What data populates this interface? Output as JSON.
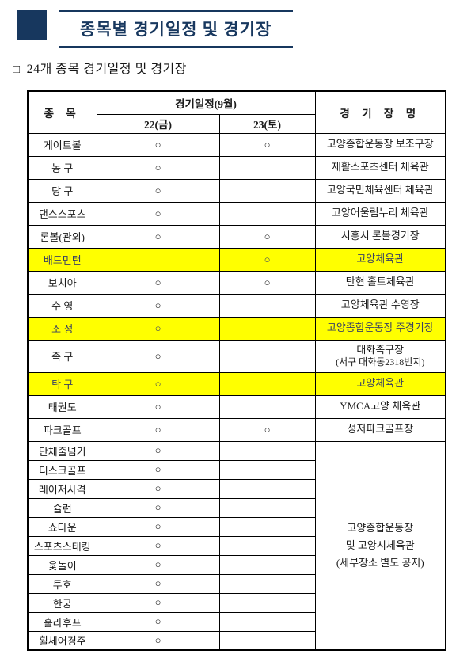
{
  "page": {
    "title": "종목별 경기일정 및 경기장",
    "subtitle_bullet": "□",
    "subtitle": "24개 종목 경기일정 및 경기장"
  },
  "colors": {
    "navy": "#17375e",
    "highlight": "#ffff00",
    "highlight_text": "#3a4263",
    "border": "#000000"
  },
  "table": {
    "headers": {
      "sport": "종 목",
      "schedule": "경기일정(9월)",
      "day1": "22(금)",
      "day2": "23(토)",
      "venue": "경 기 장 명"
    },
    "rows": [
      {
        "name": "게이트볼",
        "day1": "○",
        "day2": "○",
        "venue": [
          "고양종합운동장 보조구장"
        ],
        "highlight": false
      },
      {
        "name": "농 구",
        "day1": "○",
        "day2": "",
        "venue": [
          "재활스포츠센터 체육관"
        ],
        "highlight": false
      },
      {
        "name": "당 구",
        "day1": "○",
        "day2": "",
        "venue": [
          "고양국민체육센터 체육관"
        ],
        "highlight": false
      },
      {
        "name": "댄스스포츠",
        "day1": "○",
        "day2": "",
        "venue": [
          "고양어울림누리 체육관"
        ],
        "highlight": false
      },
      {
        "name": "론볼(관외)",
        "day1": "○",
        "day2": "○",
        "venue": [
          "시흥시 론볼경기장"
        ],
        "highlight": false
      },
      {
        "name": "배드민턴",
        "day1": "",
        "day2": "○",
        "venue": [
          "고양체육관"
        ],
        "highlight": true
      },
      {
        "name": "보치아",
        "day1": "○",
        "day2": "○",
        "venue": [
          "탄현 홀트체육관"
        ],
        "highlight": false
      },
      {
        "name": "수 영",
        "day1": "○",
        "day2": "",
        "venue": [
          "고양체육관 수영장"
        ],
        "highlight": false
      },
      {
        "name": "조 정",
        "day1": "○",
        "day2": "",
        "venue": [
          "고양종합운동장 주경기장"
        ],
        "highlight": true
      },
      {
        "name": "족 구",
        "day1": "○",
        "day2": "",
        "venue": [
          "대화족구장",
          "(서구 대화동2318번지)"
        ],
        "highlight": false
      },
      {
        "name": "탁 구",
        "day1": "○",
        "day2": "",
        "venue": [
          "고양체육관"
        ],
        "highlight": true
      },
      {
        "name": "태권도",
        "day1": "○",
        "day2": "",
        "venue": [
          "YMCA고양 체육관"
        ],
        "highlight": false
      },
      {
        "name": "파크골프",
        "day1": "○",
        "day2": "○",
        "venue": [
          "성저파크골프장"
        ],
        "highlight": false
      }
    ],
    "group_rows": [
      {
        "name": "단체줄넘기",
        "day1": "○",
        "day2": ""
      },
      {
        "name": "디스크골프",
        "day1": "○",
        "day2": ""
      },
      {
        "name": "레이저사격",
        "day1": "○",
        "day2": ""
      },
      {
        "name": "슐런",
        "day1": "○",
        "day2": ""
      },
      {
        "name": "쇼다운",
        "day1": "○",
        "day2": ""
      },
      {
        "name": "스포츠스태킹",
        "day1": "○",
        "day2": ""
      },
      {
        "name": "윷놀이",
        "day1": "○",
        "day2": ""
      },
      {
        "name": "투호",
        "day1": "○",
        "day2": ""
      },
      {
        "name": "한궁",
        "day1": "○",
        "day2": ""
      },
      {
        "name": "훌라후프",
        "day1": "○",
        "day2": ""
      },
      {
        "name": "휠체어경주",
        "day1": "○",
        "day2": ""
      }
    ],
    "group_venue": [
      "고양종합운동장",
      "및 고양시체육관",
      "(세부장소 별도 공지)"
    ]
  }
}
